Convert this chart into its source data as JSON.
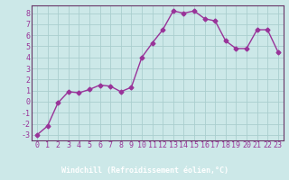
{
  "x": [
    0,
    1,
    2,
    3,
    4,
    5,
    6,
    7,
    8,
    9,
    10,
    11,
    12,
    13,
    14,
    15,
    16,
    17,
    18,
    19,
    20,
    21,
    22,
    23
  ],
  "y": [
    -3.0,
    -2.2,
    -0.1,
    0.9,
    0.8,
    1.1,
    1.5,
    1.4,
    0.9,
    1.3,
    4.0,
    5.3,
    6.5,
    8.2,
    8.0,
    8.2,
    7.5,
    7.3,
    5.5,
    4.8,
    4.8,
    6.5,
    6.5,
    4.5
  ],
  "line_color": "#993399",
  "marker": "D",
  "markersize": 2.5,
  "linewidth": 1.0,
  "bg_color": "#cce8e8",
  "plot_bg_color": "#cce8e8",
  "grid_color": "#aacece",
  "bottom_bar_color": "#663366",
  "xlabel": "Windchill (Refroidissement éolien,°C)",
  "xlabel_fontsize": 6,
  "ylabel_ticks": [
    -3,
    -2,
    -1,
    0,
    1,
    2,
    3,
    4,
    5,
    6,
    7,
    8
  ],
  "xlim": [
    -0.5,
    23.5
  ],
  "ylim": [
    -3.5,
    8.7
  ],
  "tick_fontsize": 6,
  "spine_color": "#663366"
}
